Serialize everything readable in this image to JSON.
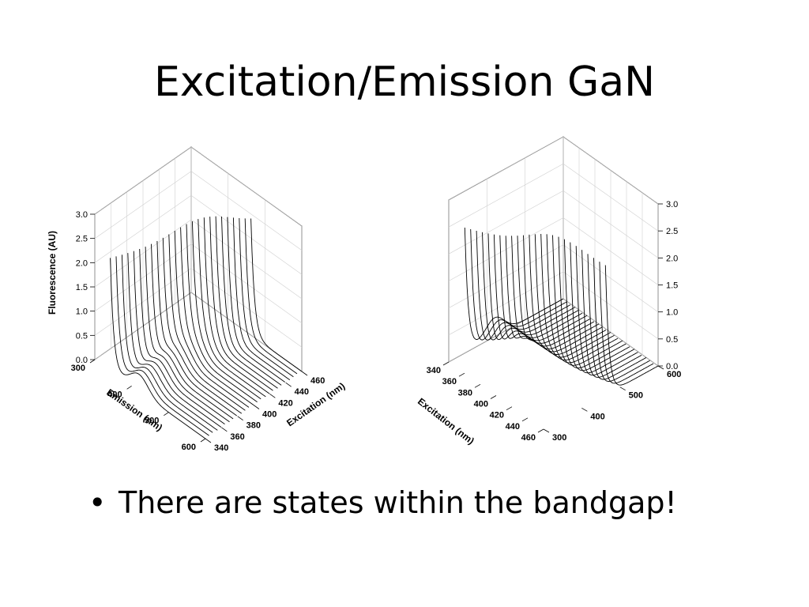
{
  "slide": {
    "title": "Excitation/Emission GaN",
    "bullets": [
      {
        "symbol": "•",
        "text": "There are states within the bandgap!"
      }
    ]
  },
  "colors": {
    "line": "#000000",
    "grid": "#d0d0d0",
    "background": "#ffffff"
  },
  "chart_data": [
    {
      "type": "line",
      "view": "3d-waterfall",
      "xlabel": "Emission (nm)",
      "ylabel": "Excitation (nm)",
      "zlabel": "Fluorescence (AU)",
      "x_ticks": [
        "300",
        "400",
        "500",
        "600"
      ],
      "y_ticks": [
        "340",
        "360",
        "380",
        "400",
        "420",
        "440",
        "460"
      ],
      "z_ticks": [
        "0.0",
        "0.5",
        "1.0",
        "1.5",
        "2.0",
        "2.5",
        "3.0"
      ],
      "xlim": [
        300,
        600
      ],
      "ylim": [
        340,
        460
      ],
      "zlim": [
        0,
        3
      ],
      "grid": true,
      "excitation_series": [
        340,
        345,
        350,
        355,
        360,
        365,
        370,
        375,
        380,
        385,
        390,
        395,
        400,
        405,
        410,
        415,
        420,
        425,
        430,
        435,
        440,
        445,
        450,
        455,
        460
      ],
      "rayleigh_peak_height": 2.9,
      "emission_band_center": 420,
      "emission_band_height": 0.35
    },
    {
      "type": "line",
      "view": "3d-waterfall-rotated",
      "xlabel": "",
      "ylabel": "Excitation (nm)",
      "zlabel": "",
      "x_ticks": [
        "300",
        "400",
        "500",
        "600"
      ],
      "y_ticks": [
        "340",
        "360",
        "380",
        "400",
        "420",
        "440",
        "460"
      ],
      "z_ticks": [
        "0.0",
        "0.5",
        "1.0",
        "1.5",
        "2.0",
        "2.5",
        "3.0"
      ],
      "xlim": [
        300,
        600
      ],
      "ylim": [
        340,
        460
      ],
      "zlim": [
        0,
        3
      ],
      "grid": true,
      "excitation_series": [
        340,
        345,
        350,
        355,
        360,
        365,
        370,
        375,
        380,
        385,
        390,
        395,
        400,
        405,
        410,
        415,
        420,
        425,
        430,
        435,
        440,
        445,
        450,
        455,
        460
      ],
      "rayleigh_peak_height": 2.9,
      "emission_band_center": 420,
      "emission_band_height": 0.35
    }
  ]
}
